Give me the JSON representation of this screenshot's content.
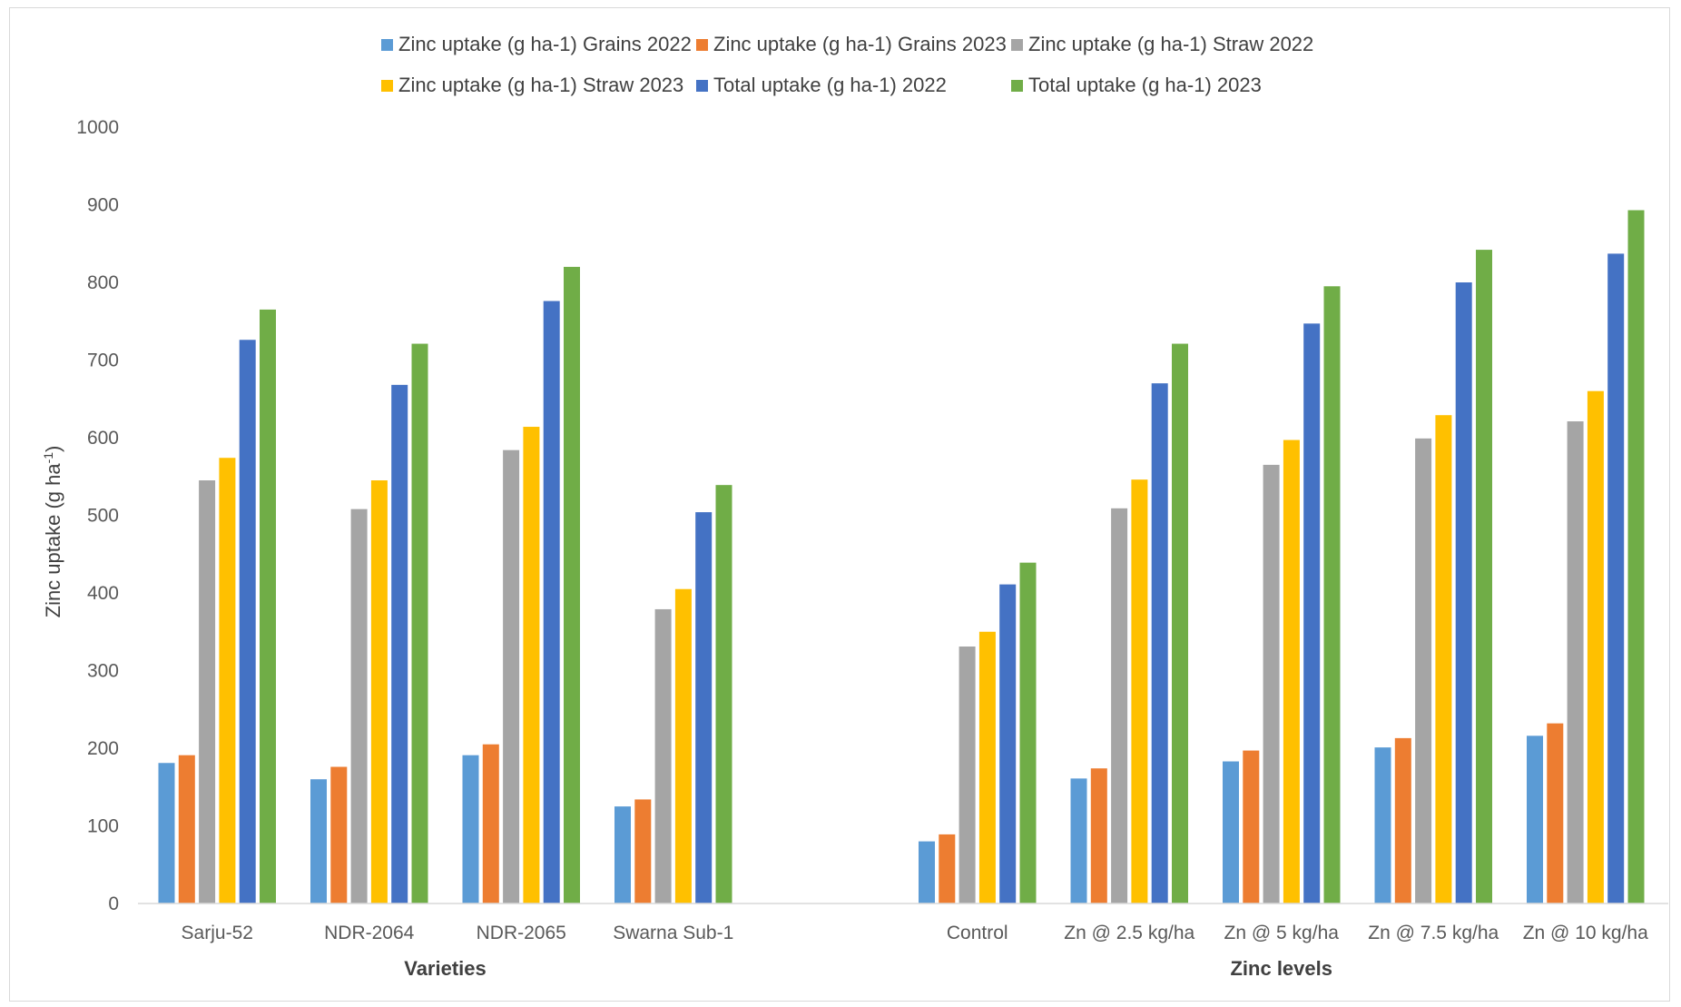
{
  "chart_data": {
    "type": "bar",
    "ylabel": "Zinc uptake (g ha-1)",
    "ylim": [
      0,
      1000
    ],
    "yticks": [
      "0",
      "100",
      "200",
      "300",
      "400",
      "500",
      "600",
      "700",
      "800",
      "900",
      "1000"
    ],
    "legend_position": "top",
    "grid": false,
    "groups": [
      {
        "label": "Varieties",
        "categories": [
          "Sarju-52",
          "NDR-2064",
          "NDR-2065",
          "Swarna Sub-1"
        ]
      },
      {
        "label": "Zinc levels",
        "categories": [
          "Control",
          "Zn @ 2.5 kg/ha",
          "Zn @ 5 kg/ha",
          "Zn @ 7.5 kg/ha",
          "Zn @ 10 kg/ha"
        ]
      }
    ],
    "series": [
      {
        "name": "Zinc uptake (g ha-1) Grains  2022",
        "color": "#5b9bd5",
        "values": [
          181,
          160,
          191,
          125,
          80,
          161,
          183,
          201,
          216
        ]
      },
      {
        "name": "Zinc uptake (g ha-1) Grains  2023",
        "color": "#ed7d31",
        "values": [
          191,
          176,
          205,
          134,
          89,
          174,
          197,
          213,
          232
        ]
      },
      {
        "name": "Zinc uptake (g ha-1) Straw  2022",
        "color": "#a5a5a5",
        "values": [
          545,
          508,
          584,
          379,
          331,
          509,
          565,
          599,
          621
        ]
      },
      {
        "name": "Zinc uptake (g ha-1) Straw  2023",
        "color": "#ffc000",
        "values": [
          574,
          545,
          614,
          405,
          350,
          546,
          597,
          629,
          660
        ]
      },
      {
        "name": "Total uptake (g ha-1) 2022",
        "color": "#4472c4",
        "values": [
          726,
          668,
          776,
          504,
          411,
          670,
          747,
          800,
          837
        ]
      },
      {
        "name": "Total uptake (g ha-1) 2023",
        "color": "#70ad47",
        "values": [
          765,
          721,
          820,
          539,
          439,
          721,
          795,
          842,
          893
        ]
      }
    ]
  }
}
